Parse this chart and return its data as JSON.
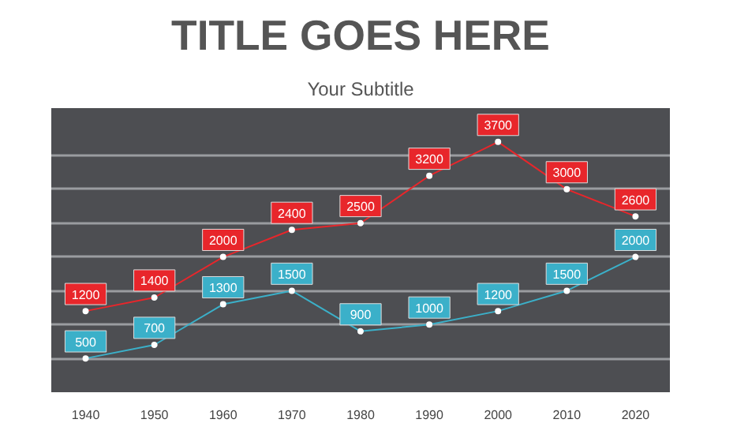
{
  "chart_data": {
    "type": "line",
    "title": "TITLE GOES HERE",
    "subtitle": "Your Subtitle",
    "categories": [
      "1940",
      "1950",
      "1960",
      "1970",
      "1980",
      "1990",
      "2000",
      "2010",
      "2020"
    ],
    "series": [
      {
        "color": "#e8262b",
        "values": [
          1200,
          1400,
          2000,
          2400,
          2500,
          3200,
          3700,
          3000,
          2600
        ]
      },
      {
        "color": "#3bb0c9",
        "values": [
          500,
          700,
          1300,
          1500,
          900,
          1000,
          1200,
          1500,
          2000
        ]
      }
    ],
    "ylim": [
      0,
      4200
    ],
    "yticks": [
      {
        "value": 500,
        "label": null
      },
      {
        "value": 1000,
        "label": null
      },
      {
        "value": 1500,
        "label": null
      },
      {
        "value": 2000,
        "label": null
      },
      {
        "value": 2500,
        "label": null
      },
      {
        "value": 3000,
        "label": null
      },
      {
        "value": 3500,
        "label": null
      }
    ],
    "tick_labels": "x",
    "grid": "y",
    "data_labels": true,
    "marker": "circle",
    "line_style": "solid"
  }
}
